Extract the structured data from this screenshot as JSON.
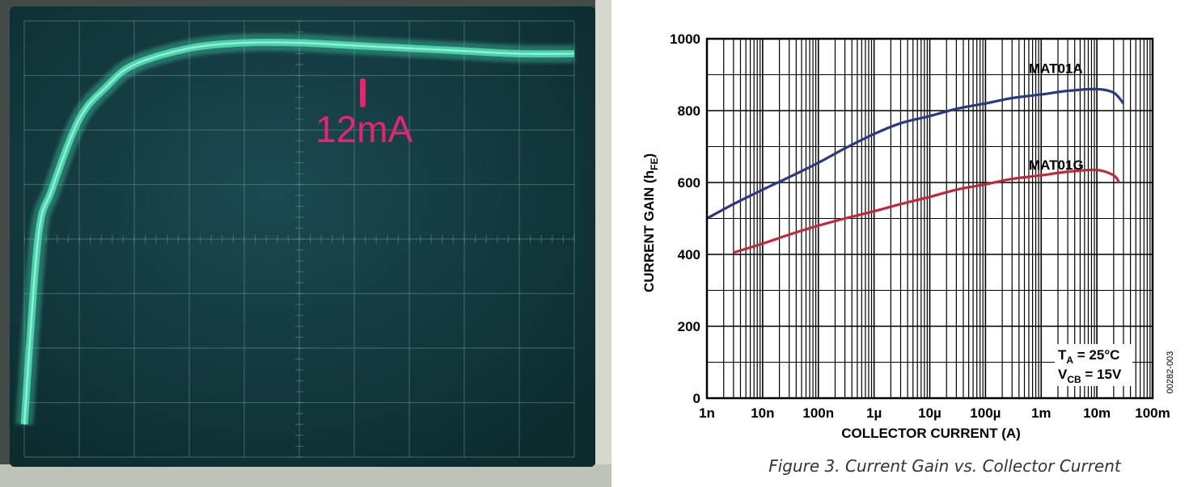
{
  "scope_photo": {
    "marker_label": "12mA",
    "colors": {
      "screen": "#0f3536",
      "trace": "#4fe3b8",
      "marker": "#e8246e",
      "bezel": "#c9ccc4"
    },
    "grid": {
      "divisions_x": 10,
      "divisions_y": 8
    }
  },
  "datasheet": {
    "figure_caption": "Figure 3. Current Gain vs. Collector Current",
    "figure_id": "00282-003",
    "conditions": [
      {
        "label": "T",
        "sub": "A",
        "value": " = 25°C"
      },
      {
        "label": "V",
        "sub": "CB",
        "value": " = 15V"
      }
    ]
  },
  "chart_data": [
    {
      "type": "line",
      "title": "Figure 3. Current Gain vs. Collector Current",
      "xlabel": "COLLECTOR CURRENT (A)",
      "ylabel": "CURRENT GAIN (hFE)",
      "ylabel_main": "CURRENT GAIN (h",
      "ylabel_sub": "FE",
      "ylabel_end": ")",
      "x_scale": "log",
      "xlim": [
        1e-09,
        0.1
      ],
      "ylim": [
        0,
        1000
      ],
      "grid": true,
      "x_ticks": [
        {
          "value": 1e-09,
          "label": "1n"
        },
        {
          "value": 1e-08,
          "label": "10n"
        },
        {
          "value": 1e-07,
          "label": "100n"
        },
        {
          "value": 1e-06,
          "label": "1µ"
        },
        {
          "value": 1e-05,
          "label": "10µ"
        },
        {
          "value": 0.0001,
          "label": "100µ"
        },
        {
          "value": 0.001,
          "label": "1m"
        },
        {
          "value": 0.01,
          "label": "10m"
        },
        {
          "value": 0.1,
          "label": "100m"
        }
      ],
      "y_ticks": [
        {
          "value": 0,
          "label": "0"
        },
        {
          "value": 200,
          "label": "200"
        },
        {
          "value": 400,
          "label": "400"
        },
        {
          "value": 600,
          "label": "600"
        },
        {
          "value": 800,
          "label": "800"
        },
        {
          "value": 1000,
          "label": "1000"
        }
      ],
      "series": [
        {
          "name": "MAT01A",
          "color": "#2b3a7f",
          "x": [
            1e-09,
            3e-09,
            1e-08,
            3e-08,
            1e-07,
            3e-07,
            1e-06,
            3e-06,
            1e-05,
            3e-05,
            0.0001,
            0.0003,
            0.001,
            0.003,
            0.01,
            0.02,
            0.03
          ],
          "y": [
            500,
            540,
            580,
            615,
            655,
            695,
            735,
            765,
            785,
            805,
            820,
            835,
            845,
            855,
            860,
            850,
            820
          ]
        },
        {
          "name": "MAT01G",
          "color": "#c0283c",
          "x": [
            3e-09,
            1e-08,
            3e-08,
            1e-07,
            3e-07,
            1e-06,
            3e-06,
            1e-05,
            3e-05,
            0.0001,
            0.0003,
            0.001,
            0.003,
            0.01,
            0.02,
            0.025
          ],
          "y": [
            405,
            430,
            455,
            480,
            500,
            520,
            540,
            560,
            580,
            595,
            610,
            620,
            630,
            635,
            620,
            600
          ]
        }
      ]
    },
    {
      "type": "line",
      "x": [
        0.0,
        0.25,
        0.5,
        1.0,
        1.5,
        2.0,
        3.0,
        4.0,
        5.0,
        6.0,
        7.0,
        8.0,
        9.0,
        10.0
      ],
      "y": [
        0.6,
        4.0,
        4.9,
        6.2,
        6.8,
        7.2,
        7.5,
        7.6,
        7.6,
        7.55,
        7.5,
        7.45,
        7.4,
        7.4
      ],
      "xlim": [
        0,
        10
      ],
      "ylim": [
        0,
        8
      ],
      "grid": true,
      "series": [
        {
          "color": "#4fe3b8"
        }
      ]
    }
  ]
}
